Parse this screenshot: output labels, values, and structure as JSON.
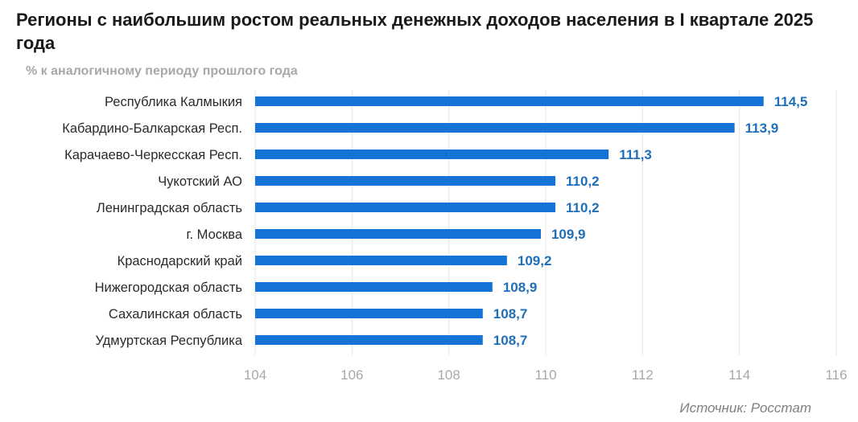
{
  "header": {
    "title": "Регионы с наибольшим ростом реальных денежных доходов населения в I квартале 2025 года",
    "subtitle": "% к аналогичному периоду прошлого года"
  },
  "footer": {
    "source": "Источник: Росстат"
  },
  "colors": {
    "bar": "#1473d6",
    "value_label": "#1f6fb8",
    "grid": "#e6e6e6",
    "tick_label": "#a8a8a8"
  },
  "chart_data": {
    "type": "bar",
    "orientation": "horizontal",
    "title": "Регионы с наибольшим ростом реальных денежных доходов населения в I квартале 2025 года",
    "subtitle": "% к аналогичному периоду прошлого года",
    "categories": [
      "Республика Калмыкия",
      "Кабардино-Балкарская Респ.",
      "Карачаево-Черкесская Респ.",
      "Чукотский АО",
      "Ленинградская область",
      "г. Москва",
      "Краснодарский край",
      "Нижегородская область",
      "Сахалинская область",
      "Удмуртская Республика"
    ],
    "values": [
      114.5,
      113.9,
      111.3,
      110.2,
      110.2,
      109.9,
      109.2,
      108.9,
      108.7,
      108.7
    ],
    "value_labels": [
      "114,5",
      "113,9",
      "111,3",
      "110,2",
      "110,2",
      "109,9",
      "109,2",
      "108,9",
      "108,7",
      "108,7"
    ],
    "xlim": [
      104,
      116
    ],
    "xticks": [
      104,
      106,
      108,
      110,
      112,
      114,
      116
    ],
    "xtick_labels": [
      "104",
      "106",
      "108",
      "110",
      "112",
      "114",
      "116"
    ],
    "grid": true,
    "legend": "none"
  }
}
